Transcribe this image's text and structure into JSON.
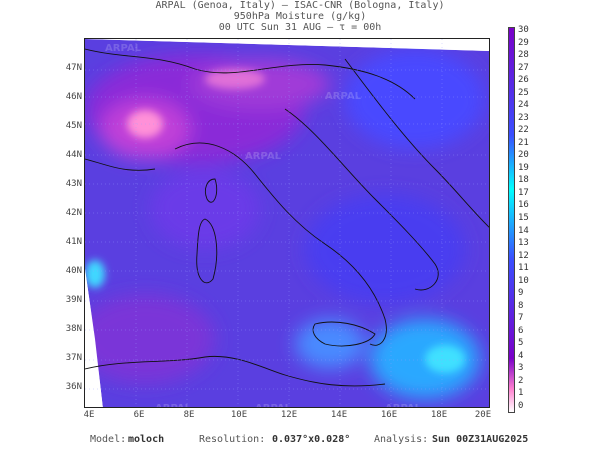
{
  "header": {
    "line1": "ARPAL (Genoa, Italy)  —  ISAC-CNR (Bologna, Italy)",
    "line2": "950hPa Moisture (g/kg)",
    "line3": "00 UTC Sun 31 AUG  —  τ = 00h"
  },
  "map": {
    "lat_labels": [
      "47N",
      "46N",
      "45N",
      "44N",
      "43N",
      "42N",
      "41N",
      "40N",
      "39N",
      "38N",
      "37N",
      "36N"
    ],
    "lon_labels": [
      "4E",
      "6E",
      "8E",
      "10E",
      "12E",
      "14E",
      "16E",
      "18E",
      "20E"
    ],
    "watermark": "ARPAL"
  },
  "colorbar": {
    "labels": [
      "0",
      "1",
      "2",
      "3",
      "4",
      "5",
      "6",
      "7",
      "8",
      "9",
      "10",
      "11",
      "12",
      "13",
      "14",
      "15",
      "16",
      "17",
      "18",
      "19",
      "20",
      "21",
      "22",
      "23",
      "24",
      "25",
      "26",
      "27",
      "28",
      "29",
      "30"
    ],
    "colors": {
      "low": "#00ffff",
      "mid": "#3a50ff",
      "high": "#7a00c8",
      "max": "#ff80d0"
    }
  },
  "footer": {
    "model_label": "Model:",
    "model_value": "moloch",
    "resolution_label": "Resolution:",
    "resolution_value": "0.037°x0.028°",
    "analysis_label": "Analysis:",
    "analysis_value": "Sun 00Z31AUG2025"
  }
}
